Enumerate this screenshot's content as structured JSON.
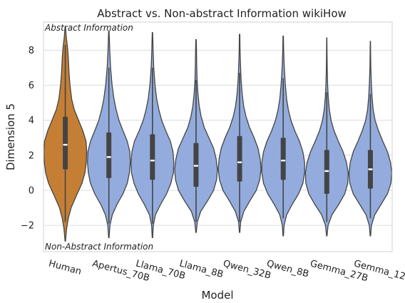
{
  "chart_data": {
    "type": "violin",
    "title": "Abstract vs. Non-abstract Information wikiHow",
    "xlabel": "Model",
    "ylabel": "Dimension 5",
    "ylim": [
      -3.5,
      9.6
    ],
    "yticks": [
      -2,
      0,
      2,
      4,
      6,
      8
    ],
    "grid": true,
    "annotations": {
      "top": "Abstract Information",
      "bottom": "Non-Abstract Information"
    },
    "colors": {
      "highlight": "#c47f35",
      "default": "#93acdd",
      "edge": "#444444"
    },
    "categories": [
      "Human",
      "Apertus_70B",
      "Llama_70B",
      "Llama_8B",
      "Qwen_32B",
      "Qwen_8B",
      "Gemma_27B",
      "Gemma_12B"
    ],
    "series": [
      {
        "category": "Human",
        "min": -2.9,
        "max": 9.3,
        "q1": 1.2,
        "median": 2.6,
        "q3": 4.2,
        "whisker_low": -1.8,
        "whisker_high": 8.3,
        "highlight": true,
        "shape": [
          [
            -2.9,
            0.01
          ],
          [
            -2.2,
            0.06
          ],
          [
            -1.6,
            0.14
          ],
          [
            -1.0,
            0.27
          ],
          [
            -0.3,
            0.52
          ],
          [
            0.4,
            0.78
          ],
          [
            1.0,
            0.92
          ],
          [
            1.6,
            0.98
          ],
          [
            2.2,
            1.0
          ],
          [
            2.8,
            0.97
          ],
          [
            3.4,
            0.82
          ],
          [
            4.0,
            0.62
          ],
          [
            4.6,
            0.42
          ],
          [
            5.2,
            0.3
          ],
          [
            6.0,
            0.22
          ],
          [
            6.8,
            0.17
          ],
          [
            7.6,
            0.14
          ],
          [
            8.2,
            0.1
          ],
          [
            8.7,
            0.05
          ],
          [
            9.3,
            0.01
          ]
        ]
      },
      {
        "category": "Apertus_70B",
        "min": -2.7,
        "max": 9.1,
        "q1": 0.7,
        "median": 1.9,
        "q3": 3.3,
        "whisker_low": -1.9,
        "whisker_high": 7.0,
        "shape": [
          [
            -2.7,
            0.01
          ],
          [
            -2.0,
            0.05
          ],
          [
            -1.4,
            0.16
          ],
          [
            -0.8,
            0.38
          ],
          [
            -0.2,
            0.66
          ],
          [
            0.4,
            0.86
          ],
          [
            1.0,
            0.96
          ],
          [
            1.6,
            1.0
          ],
          [
            2.2,
            0.98
          ],
          [
            2.8,
            0.86
          ],
          [
            3.4,
            0.66
          ],
          [
            4.0,
            0.47
          ],
          [
            4.6,
            0.34
          ],
          [
            5.2,
            0.24
          ],
          [
            6.0,
            0.15
          ],
          [
            7.0,
            0.08
          ],
          [
            8.0,
            0.04
          ],
          [
            9.1,
            0.01
          ]
        ]
      },
      {
        "category": "Llama_70B",
        "min": -2.7,
        "max": 9.0,
        "q1": 0.6,
        "median": 1.7,
        "q3": 3.2,
        "whisker_low": -1.9,
        "whisker_high": 7.0,
        "shape": [
          [
            -2.7,
            0.01
          ],
          [
            -2.0,
            0.04
          ],
          [
            -1.4,
            0.14
          ],
          [
            -0.8,
            0.38
          ],
          [
            -0.2,
            0.66
          ],
          [
            0.4,
            0.86
          ],
          [
            1.0,
            0.98
          ],
          [
            1.6,
            1.0
          ],
          [
            2.2,
            0.96
          ],
          [
            2.8,
            0.84
          ],
          [
            3.4,
            0.62
          ],
          [
            4.0,
            0.43
          ],
          [
            4.6,
            0.3
          ],
          [
            5.2,
            0.2
          ],
          [
            6.0,
            0.12
          ],
          [
            7.0,
            0.06
          ],
          [
            8.0,
            0.03
          ],
          [
            9.0,
            0.01
          ]
        ]
      },
      {
        "category": "Llama_8B",
        "min": -2.4,
        "max": 8.6,
        "q1": 0.2,
        "median": 1.4,
        "q3": 2.7,
        "whisker_low": -1.8,
        "whisker_high": 6.3,
        "shape": [
          [
            -2.4,
            0.01
          ],
          [
            -1.8,
            0.06
          ],
          [
            -1.2,
            0.22
          ],
          [
            -0.6,
            0.54
          ],
          [
            0.0,
            0.82
          ],
          [
            0.6,
            0.96
          ],
          [
            1.2,
            1.0
          ],
          [
            1.8,
            0.94
          ],
          [
            2.4,
            0.82
          ],
          [
            3.0,
            0.6
          ],
          [
            3.6,
            0.38
          ],
          [
            4.2,
            0.24
          ],
          [
            4.8,
            0.15
          ],
          [
            5.5,
            0.09
          ],
          [
            6.3,
            0.05
          ],
          [
            7.2,
            0.03
          ],
          [
            8.0,
            0.02
          ],
          [
            8.6,
            0.01
          ]
        ]
      },
      {
        "category": "Qwen_32B",
        "min": -2.4,
        "max": 8.9,
        "q1": 0.5,
        "median": 1.6,
        "q3": 3.1,
        "whisker_low": -1.8,
        "whisker_high": 6.7,
        "shape": [
          [
            -2.4,
            0.01
          ],
          [
            -1.8,
            0.05
          ],
          [
            -1.2,
            0.2
          ],
          [
            -0.6,
            0.48
          ],
          [
            0.0,
            0.78
          ],
          [
            0.6,
            0.94
          ],
          [
            1.2,
            1.0
          ],
          [
            1.8,
            0.96
          ],
          [
            2.4,
            0.86
          ],
          [
            3.0,
            0.68
          ],
          [
            3.6,
            0.46
          ],
          [
            4.2,
            0.3
          ],
          [
            4.8,
            0.19
          ],
          [
            5.5,
            0.12
          ],
          [
            6.3,
            0.07
          ],
          [
            7.2,
            0.04
          ],
          [
            8.0,
            0.02
          ],
          [
            8.9,
            0.01
          ]
        ]
      },
      {
        "category": "Qwen_8B",
        "min": -2.6,
        "max": 8.8,
        "q1": 0.6,
        "median": 1.7,
        "q3": 3.0,
        "whisker_low": -1.6,
        "whisker_high": 6.4,
        "shape": [
          [
            -2.6,
            0.01
          ],
          [
            -2.0,
            0.04
          ],
          [
            -1.4,
            0.16
          ],
          [
            -0.8,
            0.42
          ],
          [
            -0.2,
            0.72
          ],
          [
            0.4,
            0.92
          ],
          [
            1.0,
            1.0
          ],
          [
            1.6,
            1.0
          ],
          [
            2.2,
            0.92
          ],
          [
            2.8,
            0.76
          ],
          [
            3.4,
            0.54
          ],
          [
            4.0,
            0.36
          ],
          [
            4.6,
            0.24
          ],
          [
            5.2,
            0.16
          ],
          [
            6.0,
            0.1
          ],
          [
            7.0,
            0.05
          ],
          [
            8.0,
            0.02
          ],
          [
            8.8,
            0.01
          ]
        ]
      },
      {
        "category": "Gemma_27B",
        "min": -2.6,
        "max": 8.7,
        "q1": -0.2,
        "median": 1.1,
        "q3": 2.3,
        "whisker_low": -1.8,
        "whisker_high": 5.6,
        "shape": [
          [
            -2.6,
            0.01
          ],
          [
            -2.0,
            0.06
          ],
          [
            -1.4,
            0.24
          ],
          [
            -0.8,
            0.56
          ],
          [
            -0.2,
            0.84
          ],
          [
            0.4,
            0.98
          ],
          [
            1.0,
            1.0
          ],
          [
            1.6,
            0.92
          ],
          [
            2.2,
            0.76
          ],
          [
            2.8,
            0.54
          ],
          [
            3.4,
            0.34
          ],
          [
            4.0,
            0.2
          ],
          [
            4.6,
            0.12
          ],
          [
            5.3,
            0.07
          ],
          [
            6.0,
            0.04
          ],
          [
            7.0,
            0.02
          ],
          [
            8.0,
            0.01
          ],
          [
            8.7,
            0.005
          ]
        ]
      },
      {
        "category": "Gemma_12B",
        "min": -2.6,
        "max": 8.5,
        "q1": 0.1,
        "median": 1.2,
        "q3": 2.3,
        "whisker_low": -1.6,
        "whisker_high": 5.5,
        "shape": [
          [
            -2.6,
            0.01
          ],
          [
            -2.0,
            0.05
          ],
          [
            -1.4,
            0.2
          ],
          [
            -0.8,
            0.5
          ],
          [
            -0.2,
            0.8
          ],
          [
            0.4,
            0.96
          ],
          [
            1.0,
            1.0
          ],
          [
            1.6,
            0.94
          ],
          [
            2.2,
            0.8
          ],
          [
            2.8,
            0.58
          ],
          [
            3.4,
            0.38
          ],
          [
            4.0,
            0.22
          ],
          [
            4.6,
            0.13
          ],
          [
            5.3,
            0.08
          ],
          [
            6.0,
            0.05
          ],
          [
            7.0,
            0.02
          ],
          [
            8.0,
            0.01
          ],
          [
            8.5,
            0.005
          ]
        ]
      }
    ]
  }
}
